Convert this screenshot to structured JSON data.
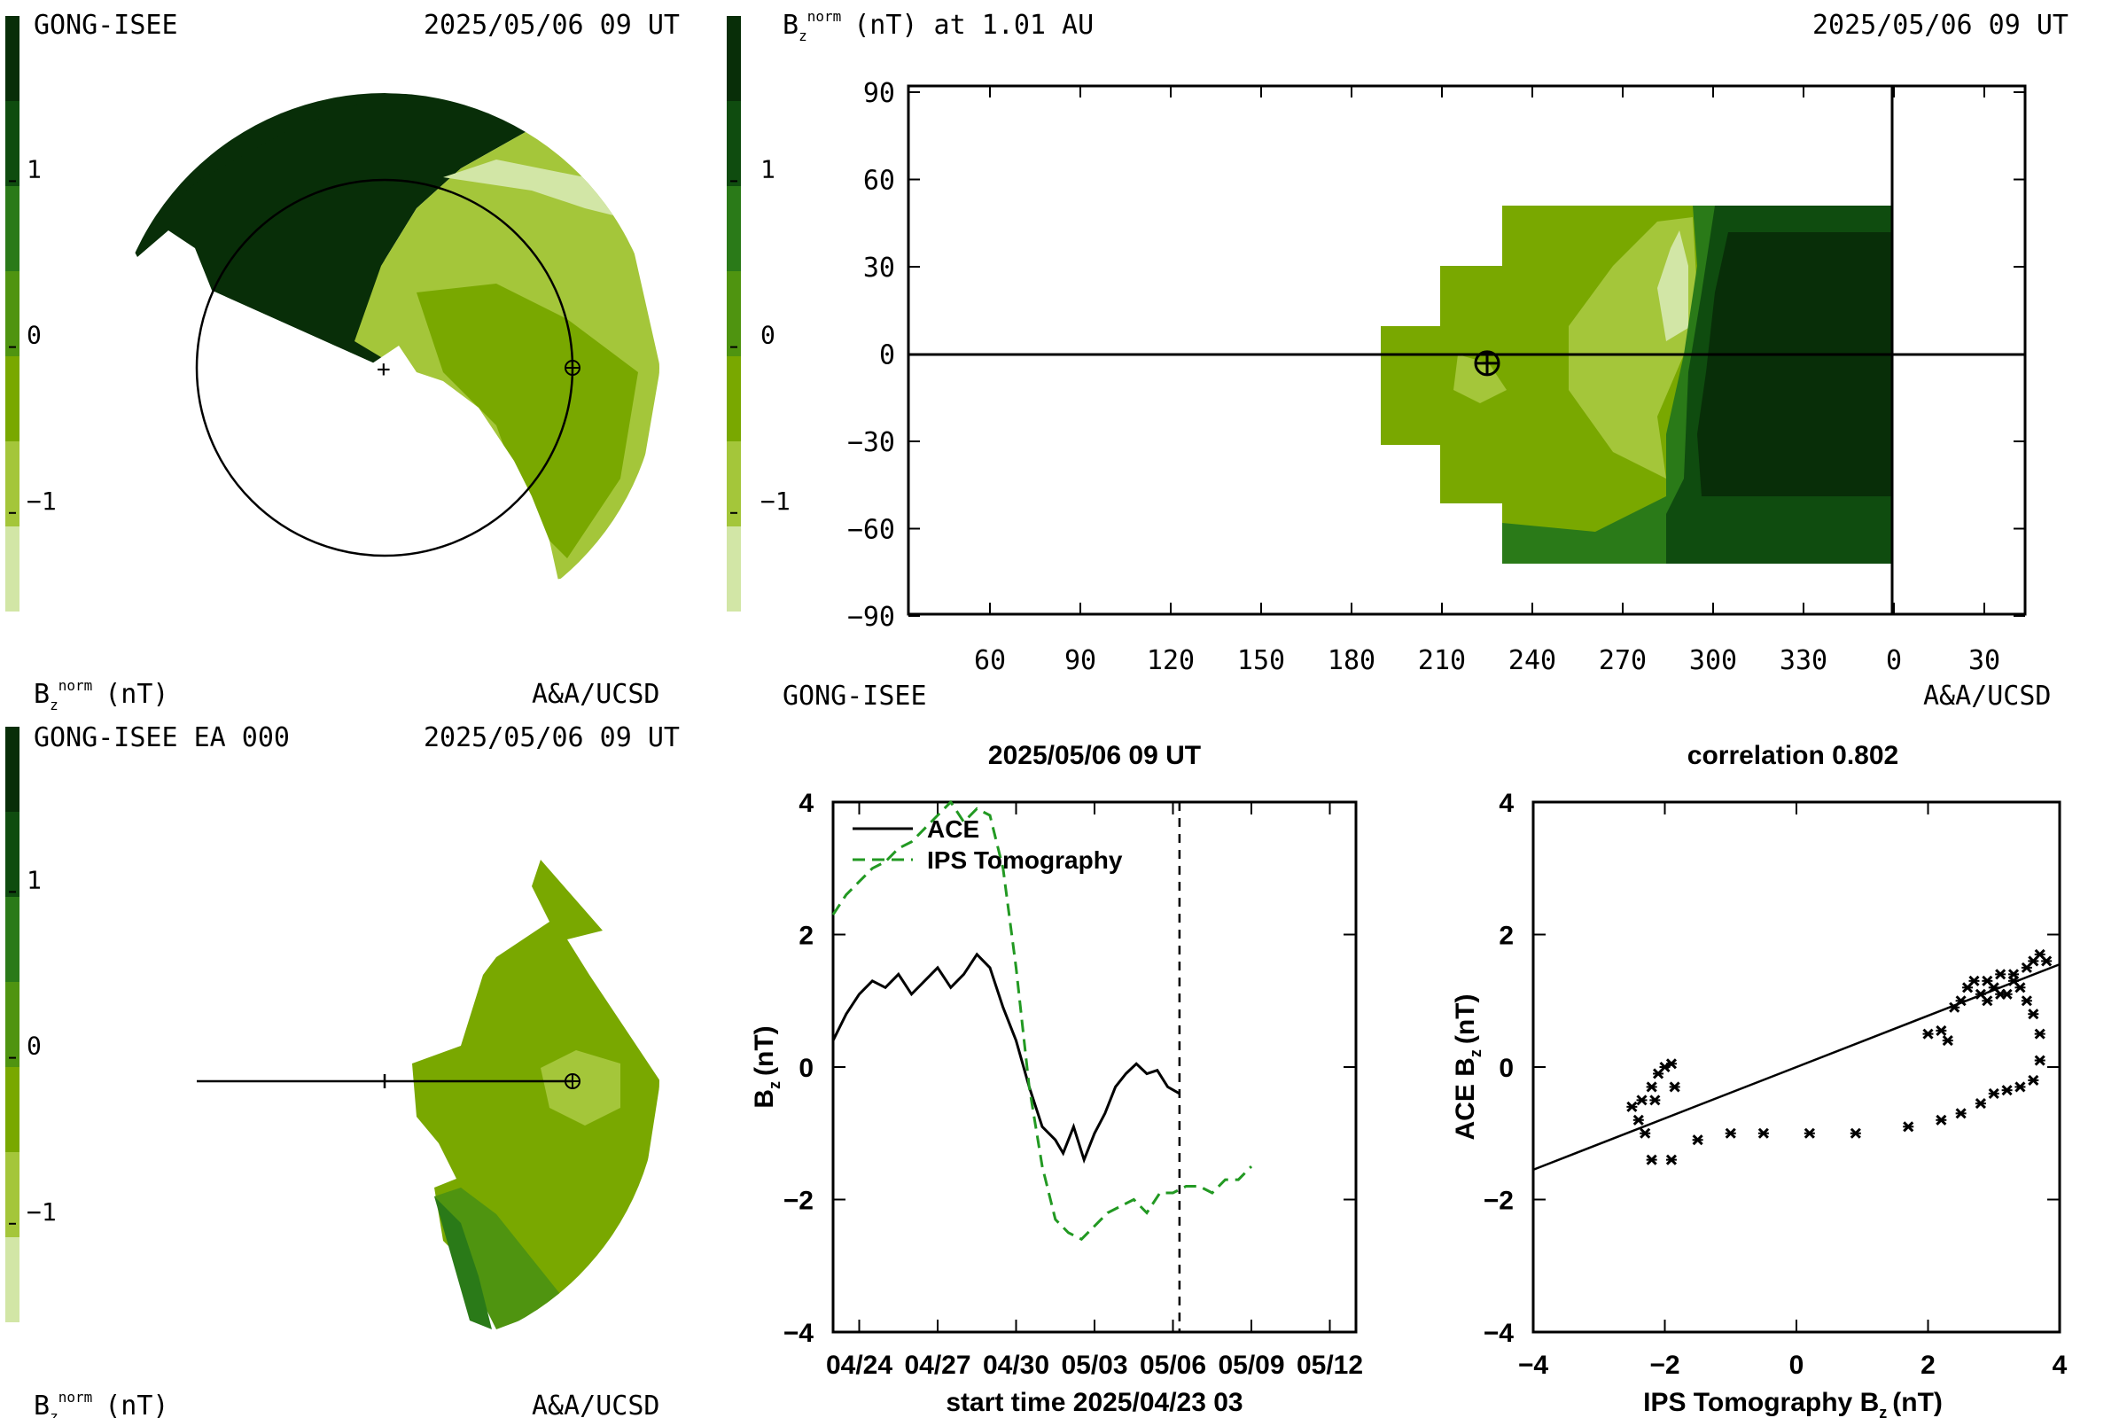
{
  "colors": {
    "c_vlow": "#d2e6a6",
    "c_low": "#a4c63a",
    "c_mid": "#79a800",
    "c_midhigh": "#4f9410",
    "c_high": "#2a7a18",
    "c_vhigh": "#0f4c0f",
    "c_max": "#082e08",
    "ips_line": "#229922"
  },
  "colorbar": {
    "ticks": [
      "1",
      "0",
      "−1"
    ]
  },
  "panel_a": {
    "source": "GONG-ISEE",
    "datetime": "2025/05/06 09 UT",
    "unit_label_main": "B",
    "unit_label_sub": "z",
    "unit_label_sup": "norm",
    "unit_label_rest": "(nT)",
    "credit": "A&A/UCSD"
  },
  "panel_b": {
    "source": "GONG-ISEE EA 000",
    "datetime": "2025/05/06 09 UT",
    "unit_label_main": "B",
    "unit_label_sub": "z",
    "unit_label_sup": "norm",
    "unit_label_rest": "(nT)",
    "credit": "A&A/UCSD"
  },
  "panel_map": {
    "title_main": "B",
    "title_sub": "z",
    "title_sup": "norm",
    "title_rest": "(nT) at 1.01 AU",
    "datetime": "2025/05/06 09 UT",
    "source": "GONG-ISEE",
    "credit": "A&A/UCSD"
  },
  "chart_data": [
    {
      "type": "heatmap",
      "x_tick_labels": [
        "60",
        "90",
        "120",
        "150",
        "180",
        "210",
        "240",
        "270",
        "300",
        "330",
        "0",
        "30"
      ],
      "y_tick_labels": [
        "90",
        "60",
        "30",
        "0",
        "−30",
        "−60",
        "−90"
      ],
      "earth_marker": {
        "x": 225,
        "y": -3
      }
    },
    {
      "type": "line",
      "title": "2025/05/06 09 UT",
      "xlabel": "start time 2025/04/23 03",
      "ylabel_main": "B",
      "ylabel_sub": "z",
      "ylabel_rest": "(nT)",
      "x_tick_labels": [
        "04/24",
        "04/27",
        "04/30",
        "05/03",
        "05/06",
        "05/09",
        "05/12"
      ],
      "x_tick_days": [
        1,
        4,
        7,
        10,
        13,
        16,
        19
      ],
      "y_tick_labels": [
        "4",
        "2",
        "0",
        "−2",
        "−4"
      ],
      "ylim": [
        -4,
        4
      ],
      "xlim": [
        0,
        20
      ],
      "now_day": 13.25,
      "legend": [
        "ACE",
        "IPS Tomography"
      ],
      "series": [
        {
          "name": "ACE",
          "days": [
            0,
            0.5,
            1,
            1.5,
            2,
            2.5,
            3,
            3.5,
            4,
            4.5,
            5,
            5.5,
            6,
            6.5,
            7,
            7.5,
            8,
            8.5,
            8.8,
            9.2,
            9.6,
            10,
            10.4,
            10.8,
            11.2,
            11.6,
            12,
            12.4,
            12.8,
            13.25
          ],
          "values": [
            0.4,
            0.8,
            1.1,
            1.3,
            1.2,
            1.4,
            1.1,
            1.3,
            1.5,
            1.2,
            1.4,
            1.7,
            1.5,
            0.9,
            0.4,
            -0.3,
            -0.9,
            -1.1,
            -1.3,
            -0.9,
            -1.4,
            -1.0,
            -0.7,
            -0.3,
            -0.1,
            0.05,
            -0.1,
            -0.05,
            -0.3,
            -0.4
          ]
        },
        {
          "name": "IPS Tomography",
          "days": [
            0,
            0.5,
            1,
            1.5,
            2,
            2.5,
            3,
            3.5,
            4,
            4.5,
            5,
            5.5,
            6,
            6.5,
            7,
            7.5,
            8,
            8.5,
            9,
            9.5,
            10,
            10.5,
            11,
            11.5,
            12,
            12.5,
            13,
            13.5,
            14,
            14.5,
            15,
            15.5,
            16
          ],
          "values": [
            2.3,
            2.6,
            2.8,
            3.0,
            3.1,
            3.3,
            3.4,
            3.6,
            3.8,
            4.0,
            3.7,
            3.9,
            3.8,
            3.0,
            1.5,
            -0.3,
            -1.5,
            -2.3,
            -2.5,
            -2.6,
            -2.4,
            -2.2,
            -2.1,
            -2.0,
            -2.2,
            -1.9,
            -1.9,
            -1.8,
            -1.8,
            -1.9,
            -1.7,
            -1.7,
            -1.5
          ]
        }
      ]
    },
    {
      "type": "scatter",
      "title": "correlation 0.802",
      "xlabel_main": "IPS Tomography B",
      "xlabel_sub": "z",
      "xlabel_rest": "(nT)",
      "ylabel_main": "ACE B",
      "ylabel_sub": "z",
      "ylabel_rest": "(nT)",
      "x_tick_labels": [
        "−4",
        "−2",
        "0",
        "2",
        "4"
      ],
      "y_tick_labels": [
        "4",
        "2",
        "0",
        "−2",
        "−4"
      ],
      "xlim": [
        -4,
        4
      ],
      "ylim": [
        -4,
        4
      ],
      "fit": {
        "x1": -4,
        "y1": -1.55,
        "x2": 4,
        "y2": 1.55
      },
      "points": [
        [
          -2.5,
          -0.6
        ],
        [
          -2.4,
          -0.8
        ],
        [
          -2.3,
          -1.0
        ],
        [
          -2.35,
          -0.5
        ],
        [
          -2.2,
          -0.3
        ],
        [
          -2.1,
          -0.1
        ],
        [
          -2.0,
          0.0
        ],
        [
          -1.9,
          0.05
        ],
        [
          -1.85,
          -0.3
        ],
        [
          -2.15,
          -0.5
        ],
        [
          -2.2,
          -1.4
        ],
        [
          -1.9,
          -1.4
        ],
        [
          -1.5,
          -1.1
        ],
        [
          -1.0,
          -1.0
        ],
        [
          -0.5,
          -1.0
        ],
        [
          0.2,
          -1.0
        ],
        [
          0.9,
          -1.0
        ],
        [
          1.7,
          -0.9
        ],
        [
          2.2,
          -0.8
        ],
        [
          2.5,
          -0.7
        ],
        [
          2.8,
          -0.55
        ],
        [
          3.0,
          -0.4
        ],
        [
          3.2,
          -0.35
        ],
        [
          3.4,
          -0.3
        ],
        [
          3.6,
          -0.2
        ],
        [
          3.7,
          0.1
        ],
        [
          2.0,
          0.5
        ],
        [
          2.2,
          0.55
        ],
        [
          2.3,
          0.4
        ],
        [
          2.4,
          0.9
        ],
        [
          2.5,
          1.0
        ],
        [
          2.6,
          1.2
        ],
        [
          2.7,
          1.3
        ],
        [
          2.8,
          1.1
        ],
        [
          2.9,
          1.3
        ],
        [
          3.0,
          1.2
        ],
        [
          3.1,
          1.4
        ],
        [
          3.2,
          1.1
        ],
        [
          3.3,
          1.3
        ],
        [
          3.4,
          1.2
        ],
        [
          3.5,
          1.5
        ],
        [
          3.6,
          1.6
        ],
        [
          3.7,
          1.7
        ],
        [
          3.8,
          1.6
        ],
        [
          3.5,
          1.0
        ],
        [
          3.6,
          0.8
        ],
        [
          3.7,
          0.5
        ],
        [
          2.9,
          1.0
        ],
        [
          3.1,
          1.1
        ],
        [
          3.3,
          1.4
        ]
      ]
    }
  ]
}
